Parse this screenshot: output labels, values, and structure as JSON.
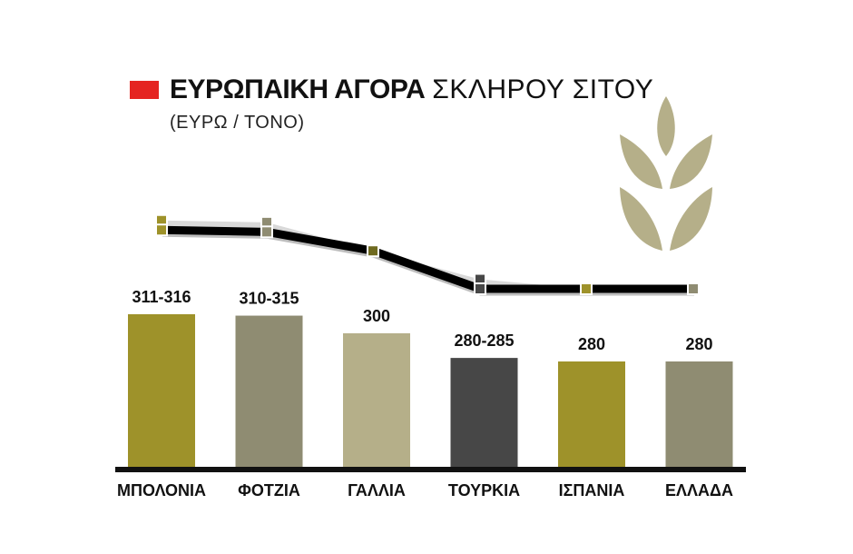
{
  "title": {
    "bold": "ΕΥΡΩΠΑΙΚΗ ΑΓΟΡΑ",
    "light": "ΣΚΛΗΡΟΥ ΣΙΤΟΥ",
    "accent": "#e52421"
  },
  "subtitle": "(ΕΥΡΩ / ΤΟΝΟ)",
  "icon": "wheat-icon",
  "colors": {
    "olive": "#9e922a",
    "gray_olive": "#8f8c72",
    "beige": "#b5af89",
    "dark": "#474747",
    "line": "#000000",
    "wheat": "#b5af89"
  },
  "chart_data": {
    "type": "bar",
    "categories": [
      "ΜΠΟΛΟΝΙΑ",
      "ΦΟΤΖΙΑ",
      "ΓΑΛΛΙΑ",
      "ΤΟΥΡΚΙΑ",
      "ΙΣΠΑΝΙΑ",
      "ΕΛΛΑΔΑ"
    ],
    "value_labels": [
      "311-316",
      "310-315",
      "300",
      "280-285",
      "280",
      "280"
    ],
    "low": [
      311,
      310,
      300,
      280,
      280,
      280
    ],
    "high": [
      316,
      315,
      300,
      285,
      280,
      280
    ],
    "bar_colors": [
      "#9e922a",
      "#8f8c72",
      "#b5af89",
      "#474747",
      "#9e922a",
      "#8f8c72"
    ],
    "marker_colors": [
      "#9e922a",
      "#8f8c72",
      "#6f6a1f",
      "#474747",
      "#9e922a",
      "#8f8c72"
    ],
    "ylabel": "",
    "xlabel": ""
  }
}
